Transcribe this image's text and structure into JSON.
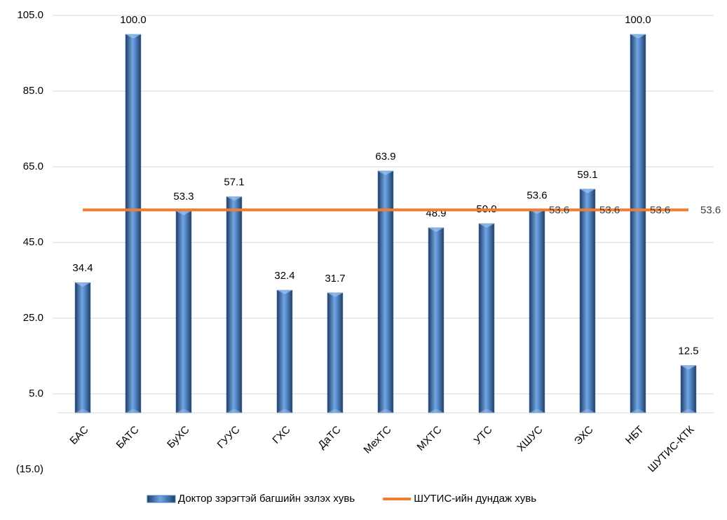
{
  "chart_data": {
    "type": "bar",
    "categories": [
      "БАС",
      "БАТС",
      "БуХС",
      "ГУУС",
      "ГХС",
      "ДаТС",
      "МехТС",
      "МХТС",
      "УТС",
      "ХШУС",
      "ЭХС",
      "НБТ",
      "ШУТИС-КТК"
    ],
    "series": [
      {
        "name": "Доктор зэрэгтэй багшийн эзлэх хувь",
        "type": "bar",
        "color": "#4f81bd",
        "values": [
          34.4,
          100.0,
          53.3,
          57.1,
          32.4,
          31.7,
          63.9,
          48.9,
          50.0,
          53.6,
          59.1,
          100.0,
          12.5
        ],
        "value_labels": [
          "34.4",
          "100.0",
          "53.3",
          "57.1",
          "32.4",
          "31.7",
          "63.9",
          "48.9",
          "50.0",
          "53.6",
          "59.1",
          "100.0",
          "12.5"
        ]
      },
      {
        "name": "ШУТИС-ийн дундаж хувь",
        "type": "line",
        "color": "#ed7d31",
        "values": [
          53.6,
          53.6,
          53.6,
          53.6,
          53.6,
          53.6,
          53.6,
          53.6,
          53.6,
          53.6,
          53.6,
          53.6,
          53.6
        ],
        "value_labels": [
          null,
          null,
          null,
          null,
          null,
          null,
          null,
          null,
          null,
          "53.6",
          "53.6",
          "53.6",
          "53.6"
        ]
      }
    ],
    "ylim": [
      -15,
      105
    ],
    "yticks": [
      {
        "value": -15,
        "label": "(15.0)"
      },
      {
        "value": 5,
        "label": "5.0"
      },
      {
        "value": 25,
        "label": "25.0"
      },
      {
        "value": 45,
        "label": "45.0"
      },
      {
        "value": 65,
        "label": "65.0"
      },
      {
        "value": 85,
        "label": "85.0"
      },
      {
        "value": 105,
        "label": "105.0"
      }
    ],
    "grid": true,
    "legend": "bottom"
  }
}
